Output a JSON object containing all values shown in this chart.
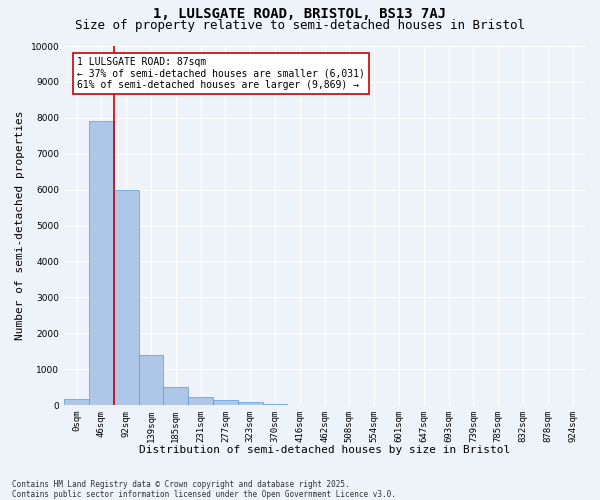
{
  "title_line1": "1, LULSGATE ROAD, BRISTOL, BS13 7AJ",
  "title_line2": "Size of property relative to semi-detached houses in Bristol",
  "xlabel": "Distribution of semi-detached houses by size in Bristol",
  "ylabel": "Number of semi-detached properties",
  "bar_color": "#aec6e8",
  "bar_edge_color": "#5b9bd5",
  "categories": [
    "0sqm",
    "46sqm",
    "92sqm",
    "139sqm",
    "185sqm",
    "231sqm",
    "277sqm",
    "323sqm",
    "370sqm",
    "416sqm",
    "462sqm",
    "508sqm",
    "554sqm",
    "601sqm",
    "647sqm",
    "693sqm",
    "739sqm",
    "785sqm",
    "832sqm",
    "878sqm",
    "924sqm"
  ],
  "values": [
    170,
    7900,
    6000,
    1400,
    500,
    230,
    150,
    80,
    20,
    0,
    0,
    0,
    0,
    0,
    0,
    0,
    0,
    0,
    0,
    0,
    0
  ],
  "ylim": [
    0,
    10000
  ],
  "yticks": [
    0,
    1000,
    2000,
    3000,
    4000,
    5000,
    6000,
    7000,
    8000,
    9000,
    10000
  ],
  "property_sqm": 87,
  "property_label": "1 LULSGATE ROAD: 87sqm",
  "pct_smaller": 37,
  "pct_larger": 61,
  "count_smaller": 6031,
  "count_larger": 9869,
  "annotation_box_color": "#ffffff",
  "annotation_border_color": "#cc0000",
  "footer_line1": "Contains HM Land Registry data © Crown copyright and database right 2025.",
  "footer_line2": "Contains public sector information licensed under the Open Government Licence v3.0.",
  "bg_color": "#eef2f9",
  "grid_color": "#ffffff",
  "title_fontsize": 10,
  "subtitle_fontsize": 9,
  "tick_fontsize": 6.5,
  "ylabel_fontsize": 8,
  "xlabel_fontsize": 8,
  "footer_fontsize": 5.5,
  "annot_fontsize": 7
}
